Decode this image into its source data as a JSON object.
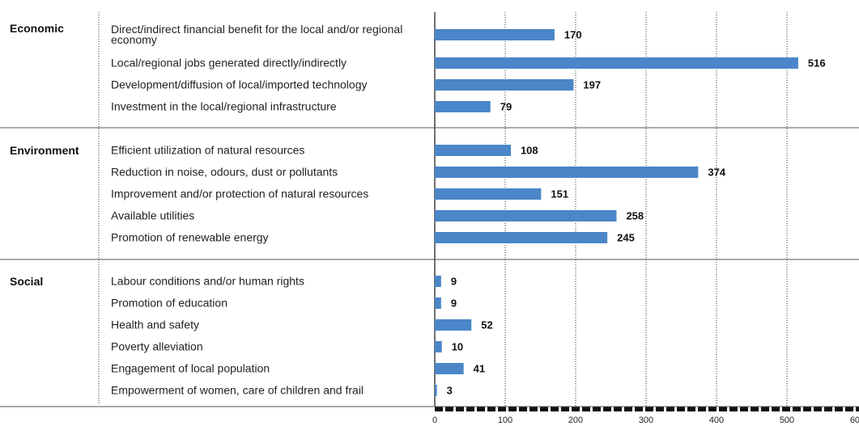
{
  "chart_data": {
    "type": "bar",
    "orientation": "horizontal",
    "color": "#4a86c8",
    "groups": [
      {
        "name": "Economic",
        "categories": [
          "Direct/indirect financial benefit for the local and/or regional economy",
          "Local/regional jobs generated directly/indirectly",
          "Development/diffusion of local/imported technology",
          "Investment in the local/regional infrastructure"
        ],
        "values": [
          170,
          516,
          197,
          79
        ]
      },
      {
        "name": "Environment",
        "categories": [
          "Efficient utilization of natural resources",
          "Reduction in noise, odours, dust or pollutants",
          "Improvement and/or protection of natural resources",
          "Available utilities",
          "Promotion of renewable energy"
        ],
        "values": [
          108,
          374,
          151,
          258,
          245
        ]
      },
      {
        "name": "Social",
        "categories": [
          "Labour conditions and/or human rights",
          "Promotion of education",
          "Health and safety",
          "Poverty alleviation",
          "Engagement of local population",
          "Empowerment of women, care of children and frail"
        ],
        "values": [
          9,
          9,
          52,
          10,
          41,
          3
        ]
      }
    ],
    "xlim": [
      0,
      600
    ],
    "xticks": [
      0,
      100,
      200,
      300,
      400,
      500,
      600
    ],
    "grid": true
  }
}
